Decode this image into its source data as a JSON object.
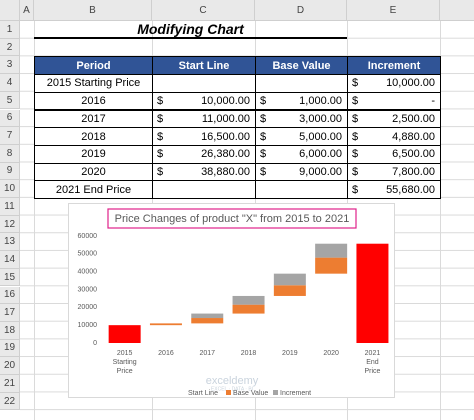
{
  "sheet": {
    "columns": [
      "A",
      "B",
      "C",
      "D",
      "E"
    ],
    "rows": [
      1,
      2,
      3,
      4,
      5,
      6,
      7,
      8,
      9,
      10,
      11,
      12,
      13,
      14,
      15,
      16,
      17,
      18,
      19,
      20,
      21,
      22
    ],
    "title": "Modifying Chart",
    "table": {
      "header": [
        "Period",
        "Start Line",
        "Base Value",
        "Increment"
      ],
      "rows": [
        [
          "2015 Starting Price",
          null,
          null,
          [
            "$",
            "10,000.00"
          ]
        ],
        [
          "2016",
          [
            "$",
            "10,000.00"
          ],
          [
            "$",
            "1,000.00"
          ],
          [
            "$",
            "-"
          ]
        ],
        [
          "2017",
          [
            "$",
            "11,000.00"
          ],
          [
            "$",
            "3,000.00"
          ],
          [
            "$",
            "2,500.00"
          ]
        ],
        [
          "2018",
          [
            "$",
            "16,500.00"
          ],
          [
            "$",
            "5,000.00"
          ],
          [
            "$",
            "4,880.00"
          ]
        ],
        [
          "2019",
          [
            "$",
            "26,380.00"
          ],
          [
            "$",
            "6,000.00"
          ],
          [
            "$",
            "6,500.00"
          ]
        ],
        [
          "2020",
          [
            "$",
            "38,880.00"
          ],
          [
            "$",
            "9,000.00"
          ],
          [
            "$",
            "7,800.00"
          ]
        ],
        [
          "2021 End Price",
          null,
          null,
          [
            "$",
            "55,680.00"
          ]
        ]
      ]
    }
  },
  "chart_data": {
    "type": "stacked_bar",
    "title": "Price Changes of product \"X\" from 2015 to 2021",
    "categories": [
      "2015 Starting Price",
      "2016",
      "2017",
      "2018",
      "2019",
      "2020",
      "2021 End Price"
    ],
    "series": [
      {
        "name": "Start Line",
        "color": "none",
        "values": [
          null,
          10000,
          11000,
          16500,
          26380,
          38880,
          null
        ]
      },
      {
        "name": "Base Value",
        "color": "#ed7d31",
        "values": [
          null,
          1000,
          3000,
          5000,
          6000,
          9000,
          null
        ]
      },
      {
        "name": "Increment",
        "color": "#a5a5a5",
        "colors": [
          "#ff0000",
          "#a5a5a5",
          "#a5a5a5",
          "#a5a5a5",
          "#a5a5a5",
          "#a5a5a5",
          "#ff0000"
        ],
        "values": [
          10000,
          0,
          2500,
          4880,
          6500,
          7800,
          55680
        ]
      }
    ],
    "ylim": [
      0,
      60000
    ],
    "yticks": [
      0,
      10000,
      20000,
      30000,
      40000,
      50000,
      60000
    ],
    "grid": false,
    "legend": "bottom",
    "watermark": [
      "exceldemy",
      "EXCEL · DATA · BI"
    ]
  }
}
